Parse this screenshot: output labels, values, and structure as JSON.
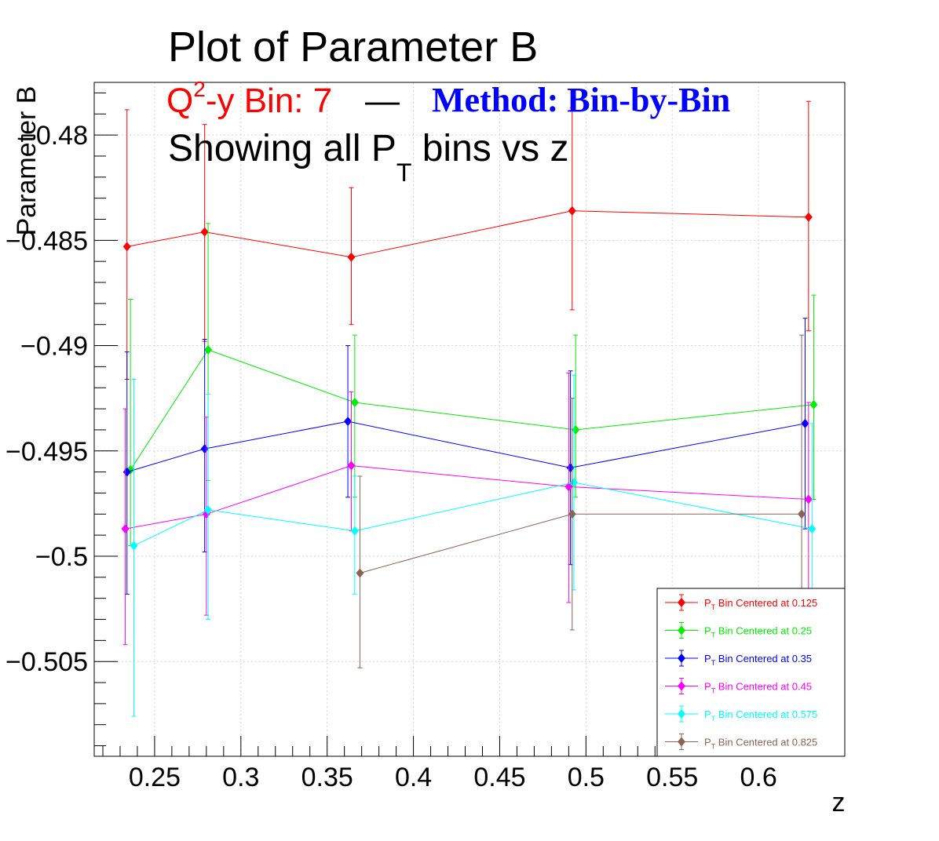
{
  "chart_data": {
    "type": "line",
    "title": "Plot of Parameter B",
    "subtitle": {
      "q2_prefix": "Q",
      "q2_sup": "2",
      "q2_rest": "-y Bin: 7",
      "dash": "—",
      "method": "Method: Bin-by-Bin",
      "line2_prefix": "Showing all P",
      "line2_sub": "T",
      "line2_rest": " bins vs z",
      "q2_color": "#ff0000",
      "method_color": "#0000ff"
    },
    "xlabel": "z",
    "ylabel": "Parameter B",
    "xlim": [
      0.215,
      0.65
    ],
    "ylim": [
      -0.5095,
      -0.4775
    ],
    "x_ticks": [
      0.25,
      0.3,
      0.35,
      0.4,
      0.45,
      0.5,
      0.55,
      0.6
    ],
    "x_tick_labels": [
      "0.25",
      "0.3",
      "0.35",
      "0.4",
      "0.45",
      "0.5",
      "0.55",
      "0.6"
    ],
    "y_ticks": [
      -0.505,
      -0.5,
      -0.495,
      -0.49,
      -0.485,
      -0.48
    ],
    "y_tick_labels": [
      "−0.505",
      "−0.5",
      "−0.495",
      "−0.49",
      "−0.485",
      "−0.48"
    ],
    "grid": true,
    "legend_position": "bottom-right",
    "series": [
      {
        "name": "Bin Centered at 0.125",
        "color": "#ff0000",
        "points": [
          {
            "x": 0.234,
            "y": -0.4853,
            "lo": -0.4916,
            "hi": -0.4788
          },
          {
            "x": 0.279,
            "y": -0.4846,
            "lo": -0.4898,
            "hi": -0.4795
          },
          {
            "x": 0.364,
            "y": -0.4858,
            "lo": -0.489,
            "hi": -0.4825
          },
          {
            "x": 0.492,
            "y": -0.4836,
            "lo": -0.4883,
            "hi": -0.4787
          },
          {
            "x": 0.629,
            "y": -0.4839,
            "lo": -0.4893,
            "hi": -0.4784
          }
        ]
      },
      {
        "name": "Bin Centered at 0.25",
        "color": "#00ee00",
        "points": [
          {
            "x": 0.236,
            "y": -0.4959,
            "lo": -0.4995,
            "hi": -0.4878
          },
          {
            "x": 0.281,
            "y": -0.4902,
            "lo": -0.4964,
            "hi": -0.4842
          },
          {
            "x": 0.366,
            "y": -0.4927,
            "lo": -0.4972,
            "hi": -0.4895
          },
          {
            "x": 0.494,
            "y": -0.494,
            "lo": -0.4972,
            "hi": -0.4895
          },
          {
            "x": 0.632,
            "y": -0.4928,
            "lo": -0.4973,
            "hi": -0.4876
          }
        ]
      },
      {
        "name": "Bin Centered at 0.35",
        "color": "#0000ff",
        "points": [
          {
            "x": 0.234,
            "y": -0.496,
            "lo": -0.5018,
            "hi": -0.4903
          },
          {
            "x": 0.279,
            "y": -0.4949,
            "lo": -0.4998,
            "hi": -0.4897
          },
          {
            "x": 0.362,
            "y": -0.4936,
            "lo": -0.4972,
            "hi": -0.49
          },
          {
            "x": 0.491,
            "y": -0.4958,
            "lo": -0.5004,
            "hi": -0.4912
          },
          {
            "x": 0.627,
            "y": -0.4937,
            "lo": -0.4987,
            "hi": -0.4887
          }
        ]
      },
      {
        "name": "Bin Centered at 0.45",
        "color": "#ff00ff",
        "points": [
          {
            "x": 0.233,
            "y": -0.4987,
            "lo": -0.5042,
            "hi": -0.493
          },
          {
            "x": 0.28,
            "y": -0.498,
            "lo": -0.5028,
            "hi": -0.4934
          },
          {
            "x": 0.364,
            "y": -0.4957,
            "lo": -0.4988,
            "hi": -0.4922
          },
          {
            "x": 0.49,
            "y": -0.4967,
            "lo": -0.5022,
            "hi": -0.4913
          },
          {
            "x": 0.629,
            "y": -0.4973,
            "lo": -0.5019,
            "hi": -0.4927
          }
        ]
      },
      {
        "name": "Bin Centered at 0.575",
        "color": "#00ffff",
        "points": [
          {
            "x": 0.238,
            "y": -0.4995,
            "lo": -0.5076,
            "hi": -0.4916
          },
          {
            "x": 0.281,
            "y": -0.4978,
            "lo": -0.503,
            "hi": -0.4923
          },
          {
            "x": 0.366,
            "y": -0.4988,
            "lo": -0.5018,
            "hi": -0.4962
          },
          {
            "x": 0.493,
            "y": -0.4965,
            "lo": -0.5016,
            "hi": -0.4914
          },
          {
            "x": 0.631,
            "y": -0.4987,
            "lo": -0.5032,
            "hi": -0.4937
          }
        ]
      },
      {
        "name": "Bin Centered at 0.825",
        "color": "#8b6452",
        "points": [
          {
            "x": 0.369,
            "y": -0.5008,
            "lo": -0.5053,
            "hi": -0.4962
          },
          {
            "x": 0.492,
            "y": -0.498,
            "lo": -0.5035,
            "hi": -0.4925
          },
          {
            "x": 0.625,
            "y": -0.498,
            "lo": -0.502,
            "hi": -0.4895
          }
        ]
      }
    ],
    "legend_prefix": "P",
    "legend_sub": "T"
  }
}
